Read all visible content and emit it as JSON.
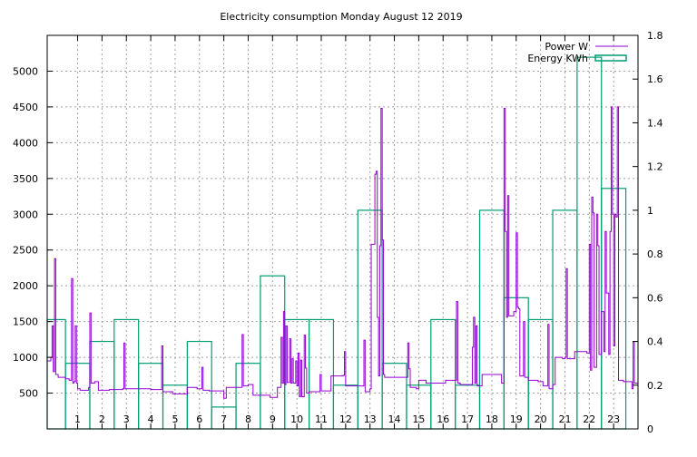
{
  "chart_data": {
    "type": "line",
    "title": "Electricity consumption Monday August 12 2019",
    "x": {
      "ticks": [
        1,
        2,
        3,
        4,
        5,
        6,
        7,
        8,
        9,
        10,
        11,
        12,
        13,
        14,
        15,
        16,
        17,
        18,
        19,
        20,
        21,
        22,
        23
      ],
      "range": [
        -0.25,
        24
      ]
    },
    "y_left": {
      "ticks": [
        500,
        1000,
        1500,
        2000,
        2500,
        3000,
        3500,
        4000,
        4500,
        5000
      ],
      "range": [
        0,
        5500
      ]
    },
    "y_right": {
      "ticks": [
        "0",
        "0.2",
        "0.4",
        "0.6",
        "0.8",
        "1",
        "1.2",
        "1.4",
        "1.6",
        "1.8"
      ],
      "tick_values": [
        0,
        0.2,
        0.4,
        0.6,
        0.8,
        1,
        1.2,
        1.4,
        1.6,
        1.8
      ],
      "range": [
        0,
        1.8
      ]
    },
    "grid": true,
    "legend_position": "top-right",
    "colors": {
      "power": "#9400d3",
      "energy": "#009e73"
    },
    "series": [
      {
        "name": "Power W",
        "axis": "left",
        "style": "line",
        "points": [
          [
            -0.25,
            950
          ],
          [
            -0.1,
            1000
          ],
          [
            -0.05,
            1440
          ],
          [
            0,
            800
          ],
          [
            0.05,
            2380
          ],
          [
            0.1,
            760
          ],
          [
            0.2,
            720
          ],
          [
            0.5,
            700
          ],
          [
            0.65,
            680
          ],
          [
            0.75,
            2100
          ],
          [
            0.8,
            640
          ],
          [
            0.85,
            660
          ],
          [
            0.9,
            1440
          ],
          [
            0.95,
            640
          ],
          [
            1.0,
            560
          ],
          [
            1.1,
            540
          ],
          [
            1.45,
            580
          ],
          [
            1.5,
            1620
          ],
          [
            1.55,
            640
          ],
          [
            1.7,
            660
          ],
          [
            1.85,
            540
          ],
          [
            2.3,
            550
          ],
          [
            2.85,
            560
          ],
          [
            2.9,
            1200
          ],
          [
            2.95,
            560
          ],
          [
            3.4,
            560
          ],
          [
            3.9,
            560
          ],
          [
            4.0,
            550
          ],
          [
            4.4,
            550
          ],
          [
            4.45,
            1160
          ],
          [
            4.5,
            520
          ],
          [
            4.9,
            490
          ],
          [
            5.0,
            490
          ],
          [
            5.5,
            580
          ],
          [
            5.9,
            560
          ],
          [
            6.1,
            860
          ],
          [
            6.15,
            540
          ],
          [
            6.4,
            530
          ],
          [
            6.9,
            530
          ],
          [
            7.0,
            430
          ],
          [
            7.05,
            430
          ],
          [
            7.1,
            580
          ],
          [
            7.7,
            580
          ],
          [
            7.75,
            1320
          ],
          [
            7.8,
            600
          ],
          [
            8.0,
            620
          ],
          [
            8.2,
            470
          ],
          [
            8.9,
            440
          ],
          [
            9.0,
            440
          ],
          [
            9.2,
            580
          ],
          [
            9.35,
            1280
          ],
          [
            9.4,
            640
          ],
          [
            9.45,
            1640
          ],
          [
            9.5,
            620
          ],
          [
            9.55,
            1440
          ],
          [
            9.6,
            650
          ],
          [
            9.7,
            1260
          ],
          [
            9.75,
            640
          ],
          [
            9.8,
            980
          ],
          [
            9.85,
            640
          ],
          [
            9.95,
            950
          ],
          [
            10.0,
            600
          ],
          [
            10.05,
            1060
          ],
          [
            10.1,
            450
          ],
          [
            10.15,
            960
          ],
          [
            10.2,
            450
          ],
          [
            10.3,
            1310
          ],
          [
            10.35,
            850
          ],
          [
            10.4,
            500
          ],
          [
            10.5,
            520
          ],
          [
            10.9,
            520
          ],
          [
            10.95,
            760
          ],
          [
            11.0,
            530
          ],
          [
            11.4,
            740
          ],
          [
            11.9,
            750
          ],
          [
            11.95,
            1080
          ],
          [
            12.0,
            600
          ],
          [
            12.7,
            600
          ],
          [
            12.75,
            1240
          ],
          [
            12.8,
            520
          ],
          [
            13.0,
            560
          ],
          [
            13.05,
            2580
          ],
          [
            13.2,
            3560
          ],
          [
            13.25,
            3600
          ],
          [
            13.3,
            1560
          ],
          [
            13.35,
            740
          ],
          [
            13.4,
            2560
          ],
          [
            13.45,
            4480
          ],
          [
            13.5,
            2640
          ],
          [
            13.55,
            760
          ],
          [
            13.6,
            720
          ],
          [
            13.9,
            720
          ],
          [
            14.0,
            720
          ],
          [
            14.5,
            720
          ],
          [
            14.55,
            1200
          ],
          [
            14.6,
            840
          ],
          [
            14.65,
            580
          ],
          [
            14.9,
            560
          ],
          [
            15.0,
            680
          ],
          [
            15.3,
            640
          ],
          [
            15.9,
            640
          ],
          [
            16.1,
            680
          ],
          [
            16.5,
            680
          ],
          [
            16.55,
            1780
          ],
          [
            16.6,
            640
          ],
          [
            16.7,
            620
          ],
          [
            17.0,
            620
          ],
          [
            17.2,
            1140
          ],
          [
            17.25,
            1560
          ],
          [
            17.3,
            640
          ],
          [
            17.35,
            1440
          ],
          [
            17.4,
            600
          ],
          [
            17.6,
            760
          ],
          [
            17.9,
            760
          ],
          [
            18.0,
            760
          ],
          [
            18.4,
            640
          ],
          [
            18.5,
            4480
          ],
          [
            18.55,
            2760
          ],
          [
            18.6,
            1560
          ],
          [
            18.65,
            3260
          ],
          [
            18.7,
            1580
          ],
          [
            18.9,
            1640
          ],
          [
            19.0,
            2740
          ],
          [
            19.05,
            1700
          ],
          [
            19.1,
            1680
          ],
          [
            19.15,
            740
          ],
          [
            19.3,
            1500
          ],
          [
            19.35,
            720
          ],
          [
            19.5,
            680
          ],
          [
            19.9,
            660
          ],
          [
            20.1,
            600
          ],
          [
            20.3,
            1460
          ],
          [
            20.35,
            560
          ],
          [
            20.5,
            620
          ],
          [
            20.6,
            1000
          ],
          [
            20.7,
            1000
          ],
          [
            20.9,
            980
          ],
          [
            21.0,
            1000
          ],
          [
            21.05,
            2240
          ],
          [
            21.1,
            980
          ],
          [
            21.4,
            1080
          ],
          [
            21.6,
            1080
          ],
          [
            21.9,
            1060
          ],
          [
            22.0,
            2580
          ],
          [
            22.05,
            820
          ],
          [
            22.1,
            3240
          ],
          [
            22.15,
            3020
          ],
          [
            22.2,
            860
          ],
          [
            22.3,
            3000
          ],
          [
            22.35,
            2560
          ],
          [
            22.4,
            1040
          ],
          [
            22.5,
            1640
          ],
          [
            22.6,
            1080
          ],
          [
            22.65,
            2760
          ],
          [
            22.7,
            1900
          ],
          [
            22.8,
            1040
          ],
          [
            22.85,
            2760
          ],
          [
            22.9,
            4500
          ],
          [
            22.95,
            3000
          ],
          [
            23.0,
            1160
          ],
          [
            23.05,
            3000
          ],
          [
            23.1,
            2960
          ],
          [
            23.15,
            4500
          ],
          [
            23.2,
            680
          ],
          [
            23.4,
            660
          ],
          [
            23.6,
            660
          ],
          [
            23.75,
            560
          ],
          [
            23.8,
            1220
          ],
          [
            23.85,
            640
          ],
          [
            24.0,
            640
          ]
        ]
      },
      {
        "name": "Energy KWh",
        "axis": "right",
        "style": "boxes",
        "x": [
          0,
          1,
          2,
          3,
          4,
          5,
          6,
          7,
          8,
          9,
          10,
          11,
          12,
          13,
          14,
          15,
          16,
          17,
          18,
          19,
          20,
          21,
          22,
          23
        ],
        "values": [
          0.5,
          0.3,
          0.4,
          0.5,
          0.3,
          0.2,
          0.4,
          0.1,
          0.3,
          0.7,
          0.5,
          0.5,
          0.2,
          1.0,
          0.3,
          0.2,
          0.5,
          0.2,
          1.0,
          0.6,
          0.5,
          1.0,
          1.7,
          1.1
        ]
      }
    ]
  }
}
